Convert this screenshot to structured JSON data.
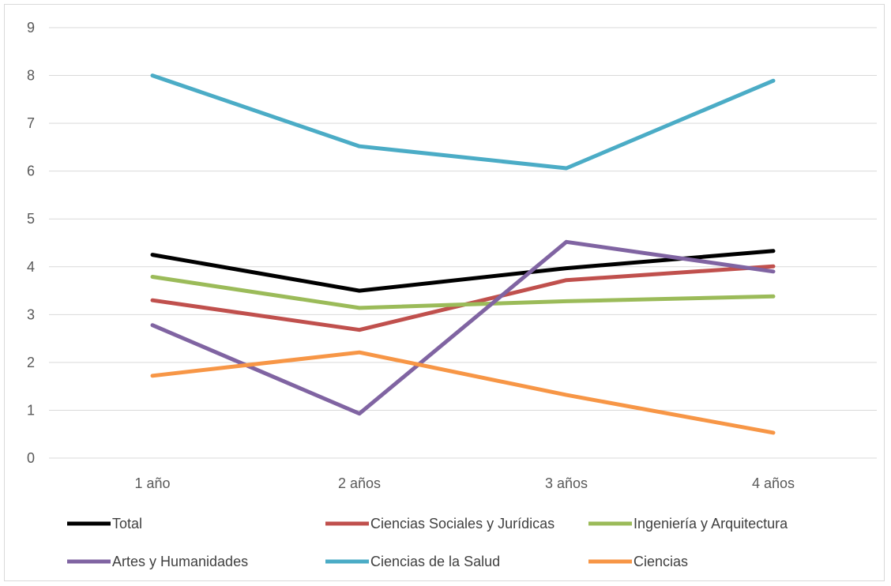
{
  "chart_data": {
    "type": "line",
    "title": "",
    "xlabel": "",
    "ylabel": "",
    "categories": [
      "1 año",
      "2 años",
      "3 años",
      "4 años"
    ],
    "ylim": [
      0,
      9
    ],
    "yticks": [
      "0",
      "1",
      "2",
      "3",
      "4",
      "5",
      "6",
      "7",
      "8",
      "9"
    ],
    "grid": true,
    "legend_position": "bottom",
    "series": [
      {
        "name": "Total",
        "color": "#000000",
        "values": [
          4.25,
          3.5,
          3.97,
          4.33
        ]
      },
      {
        "name": "Ciencias Sociales y Jurídicas",
        "color": "#c0504d",
        "values": [
          3.3,
          2.68,
          3.72,
          4.01
        ]
      },
      {
        "name": "Ingeniería y Arquitectura",
        "color": "#9bbb59",
        "values": [
          3.79,
          3.14,
          3.28,
          3.38
        ]
      },
      {
        "name": "Artes y Humanidades",
        "color": "#8064a2",
        "values": [
          2.78,
          0.93,
          4.52,
          3.9
        ]
      },
      {
        "name": "Ciencias de la Salud",
        "color": "#4bacc6",
        "values": [
          8.0,
          6.52,
          6.06,
          7.89
        ]
      },
      {
        "name": "Ciencias",
        "color": "#f79646",
        "values": [
          1.72,
          2.21,
          1.32,
          0.53
        ]
      }
    ]
  }
}
